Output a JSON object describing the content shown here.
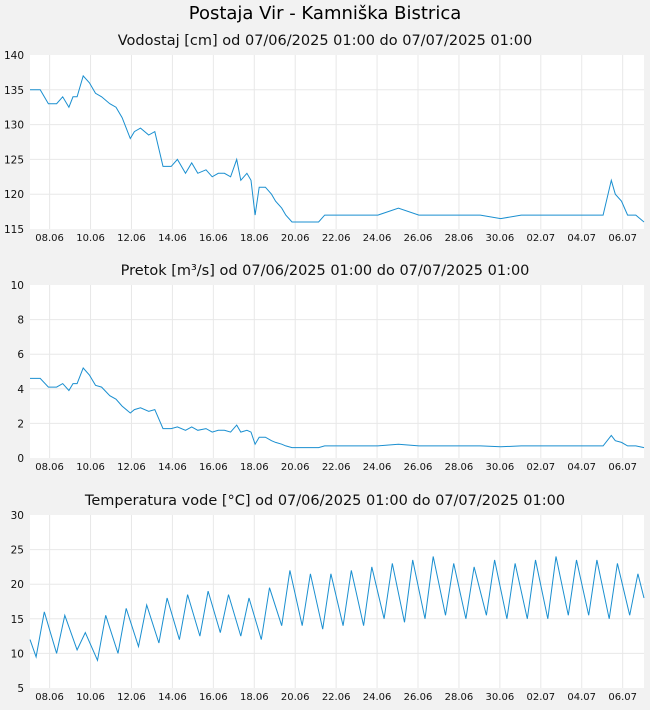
{
  "page": {
    "title": "Postaja Vir - Kamniška Bistrica"
  },
  "colors": {
    "series": "#1a8fd0",
    "plot_bg": "#ffffff",
    "page_bg": "#f2f2f2",
    "grid": "#e8e8e8"
  },
  "x_tick_labels": [
    "08.06",
    "10.06",
    "12.06",
    "14.06",
    "16.06",
    "18.06",
    "20.06",
    "22.06",
    "24.06",
    "26.06",
    "28.06",
    "30.06",
    "02.07",
    "04.07",
    "06.07"
  ],
  "chart_data": [
    {
      "type": "line",
      "title": "Vodostaj [cm] od 07/06/2025 01:00 do 07/07/2025 01:00",
      "ylim": [
        115,
        140
      ],
      "yticks": [
        "115",
        "120",
        "125",
        "130",
        "135",
        "140"
      ],
      "x_unit": "days since 07.06 01:00",
      "xlim": [
        0,
        30
      ],
      "series": [
        {
          "name": "Vodostaj",
          "x": [
            0,
            0.5,
            0.9,
            1.3,
            1.6,
            1.9,
            2.1,
            2.3,
            2.6,
            2.9,
            3.2,
            3.5,
            3.9,
            4.2,
            4.5,
            4.9,
            5.1,
            5.4,
            5.8,
            6.1,
            6.5,
            6.9,
            7.2,
            7.6,
            7.9,
            8.2,
            8.6,
            8.9,
            9.2,
            9.5,
            9.8,
            10.1,
            10.3,
            10.6,
            10.8,
            11.0,
            11.2,
            11.5,
            11.8,
            12.0,
            12.3,
            12.5,
            12.8,
            13.0,
            13.2,
            13.5,
            13.8,
            14.1,
            14.4,
            15.0,
            16.0,
            17.0,
            18.0,
            19.0,
            20.0,
            21.0,
            22.0,
            23.0,
            24.0,
            25.0,
            25.5,
            26.0,
            27.0,
            28.0,
            28.4,
            28.6,
            28.9,
            29.2,
            29.6,
            30.0
          ],
          "values": [
            135,
            135,
            133,
            133,
            134,
            132.5,
            134,
            134,
            137,
            136,
            134.5,
            134,
            133,
            132.5,
            131,
            128,
            129,
            129.5,
            128.5,
            129,
            124,
            124,
            125,
            123,
            124.5,
            123,
            123.5,
            122.5,
            123,
            123,
            122.5,
            125,
            122,
            123,
            122,
            117,
            121,
            121,
            120,
            119,
            118,
            117,
            116,
            116,
            116,
            116,
            116,
            116,
            117,
            117,
            117,
            117,
            118,
            117,
            117,
            117,
            117,
            116.5,
            117,
            117,
            117,
            117,
            117,
            117,
            122,
            120,
            119,
            117,
            117,
            116
          ]
        }
      ]
    },
    {
      "type": "line",
      "title": "Pretok [m³/s] od 07/06/2025 01:00 do 07/07/2025 01:00",
      "ylim": [
        0,
        10
      ],
      "yticks": [
        "0",
        "2",
        "4",
        "6",
        "8",
        "10"
      ],
      "x_unit": "days since 07.06 01:00",
      "xlim": [
        0,
        30
      ],
      "series": [
        {
          "name": "Pretok",
          "x": [
            0,
            0.5,
            0.9,
            1.3,
            1.6,
            1.9,
            2.1,
            2.3,
            2.6,
            2.9,
            3.2,
            3.5,
            3.9,
            4.2,
            4.5,
            4.9,
            5.1,
            5.4,
            5.8,
            6.1,
            6.5,
            6.9,
            7.2,
            7.6,
            7.9,
            8.2,
            8.6,
            8.9,
            9.2,
            9.5,
            9.8,
            10.1,
            10.3,
            10.6,
            10.8,
            11.0,
            11.2,
            11.5,
            11.8,
            12.0,
            12.3,
            12.5,
            12.8,
            13.0,
            13.2,
            13.5,
            13.8,
            14.1,
            14.4,
            15.0,
            16.0,
            17.0,
            18.0,
            19.0,
            20.0,
            21.0,
            22.0,
            23.0,
            24.0,
            25.0,
            25.5,
            26.0,
            27.0,
            28.0,
            28.4,
            28.6,
            28.9,
            29.2,
            29.6,
            30.0
          ],
          "values": [
            4.6,
            4.6,
            4.1,
            4.1,
            4.3,
            3.9,
            4.3,
            4.3,
            5.2,
            4.8,
            4.2,
            4.1,
            3.6,
            3.4,
            3.0,
            2.6,
            2.8,
            2.9,
            2.7,
            2.8,
            1.7,
            1.7,
            1.8,
            1.6,
            1.8,
            1.6,
            1.7,
            1.5,
            1.6,
            1.6,
            1.5,
            1.9,
            1.5,
            1.6,
            1.5,
            0.8,
            1.2,
            1.2,
            1.0,
            0.9,
            0.8,
            0.7,
            0.6,
            0.6,
            0.6,
            0.6,
            0.6,
            0.6,
            0.7,
            0.7,
            0.7,
            0.7,
            0.8,
            0.7,
            0.7,
            0.7,
            0.7,
            0.65,
            0.7,
            0.7,
            0.7,
            0.7,
            0.7,
            0.7,
            1.3,
            1.0,
            0.9,
            0.7,
            0.7,
            0.6
          ]
        }
      ]
    },
    {
      "type": "line",
      "title": "Temperatura vode [°C] od 07/06/2025 01:00 do 07/07/2025 01:00",
      "ylim": [
        5,
        30
      ],
      "yticks": [
        "5",
        "10",
        "15",
        "20",
        "25",
        "30"
      ],
      "x_unit": "days since 07.06 01:00",
      "xlim": [
        0,
        30
      ],
      "series": [
        {
          "name": "Temperatura vode",
          "x": [
            0,
            0.3,
            0.7,
            1.3,
            1.7,
            2.3,
            2.7,
            3.3,
            3.7,
            4.3,
            4.7,
            5.3,
            5.7,
            6.3,
            6.7,
            7.3,
            7.7,
            8.3,
            8.7,
            9.3,
            9.7,
            10.3,
            10.7,
            11.3,
            11.7,
            12.3,
            12.7,
            13.3,
            13.7,
            14.3,
            14.7,
            15.3,
            15.7,
            16.3,
            16.7,
            17.3,
            17.7,
            18.3,
            18.7,
            19.3,
            19.7,
            20.3,
            20.7,
            21.3,
            21.7,
            22.3,
            22.7,
            23.3,
            23.7,
            24.3,
            24.7,
            25.3,
            25.7,
            26.3,
            26.7,
            27.3,
            27.7,
            28.3,
            28.7,
            29.3,
            29.7,
            30.0
          ],
          "values": [
            12,
            9.5,
            16,
            10,
            15.5,
            10.5,
            13,
            9,
            15.5,
            10,
            16.5,
            11,
            17,
            11.5,
            18,
            12,
            18.5,
            12.5,
            19,
            13,
            18.5,
            12.5,
            18,
            12,
            19.5,
            14,
            22,
            14,
            21.5,
            13.5,
            21.5,
            14,
            22,
            14,
            22.5,
            15,
            23,
            14.5,
            23.5,
            15,
            24,
            15.5,
            23,
            15,
            22.5,
            15.5,
            23.5,
            15,
            23,
            15,
            23.5,
            15,
            24,
            15.5,
            23.5,
            15.5,
            23.5,
            15,
            23,
            15.5,
            21.5,
            18
          ]
        }
      ]
    }
  ]
}
